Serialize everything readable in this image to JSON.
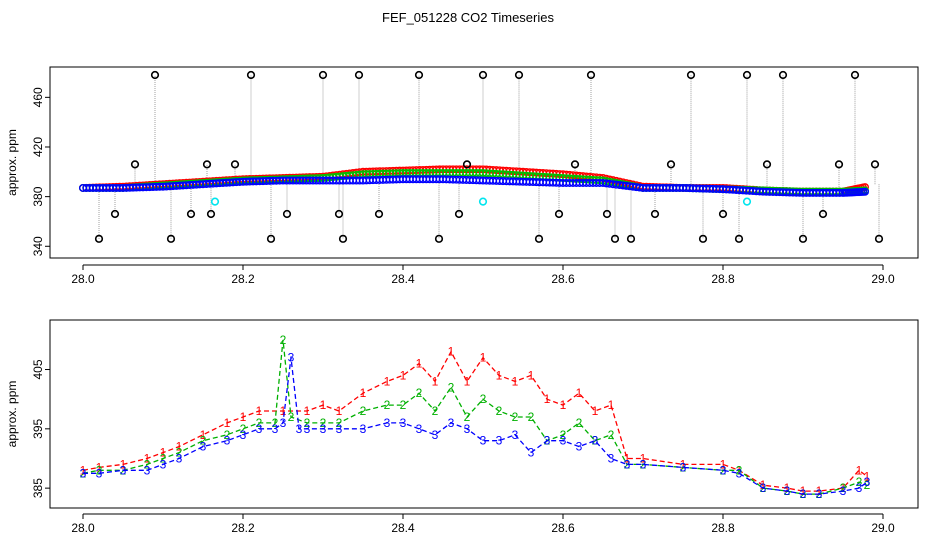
{
  "title": "FEF_051228  CO2 Timeseries",
  "chart_data": [
    {
      "type": "scatter",
      "ylabel": "approx. ppm",
      "xlim": [
        28.0,
        29.0
      ],
      "ylim": [
        337,
        478
      ],
      "xticks": [
        "28.0",
        "28.2",
        "28.4",
        "28.6",
        "28.8",
        "29.0"
      ],
      "yticks": [
        "340",
        "380",
        "420",
        "460"
      ],
      "colors": {
        "s1": "#ff0000",
        "s2": "#00c000",
        "s3": "#0000ff",
        "black": "#000000",
        "cyan": "#00e5ee",
        "link": "#a0a0a0"
      },
      "series": [
        {
          "color": "s1",
          "x": [
            28.0,
            28.05,
            28.1,
            28.15,
            28.2,
            28.25,
            28.3,
            28.35,
            28.4,
            28.45,
            28.5,
            28.55,
            28.6,
            28.65,
            28.7,
            28.75,
            28.8,
            28.85,
            28.9,
            28.95,
            28.98
          ],
          "y": [
            387,
            388,
            390,
            392,
            394,
            395,
            396,
            400,
            401,
            402,
            402,
            400,
            398,
            395,
            388,
            387,
            387,
            385,
            384,
            384,
            388
          ]
        },
        {
          "color": "s2",
          "x": [
            28.0,
            28.05,
            28.1,
            28.15,
            28.2,
            28.25,
            28.3,
            28.35,
            28.4,
            28.45,
            28.5,
            28.55,
            28.6,
            28.65,
            28.7,
            28.75,
            28.8,
            28.85,
            28.9,
            28.95,
            28.98
          ],
          "y": [
            387,
            387,
            389,
            391,
            393,
            394,
            395,
            398,
            399,
            399,
            399,
            397,
            395,
            393,
            387,
            387,
            386,
            385,
            384,
            384,
            385
          ]
        },
        {
          "color": "s3",
          "x": [
            28.0,
            28.05,
            28.1,
            28.15,
            28.2,
            28.25,
            28.3,
            28.35,
            28.4,
            28.45,
            28.5,
            28.55,
            28.6,
            28.65,
            28.7,
            28.75,
            28.8,
            28.85,
            28.9,
            28.95,
            28.98
          ],
          "y": [
            387,
            387,
            388,
            390,
            392,
            393,
            393,
            393,
            394,
            394,
            393,
            392,
            391,
            391,
            387,
            387,
            386,
            384,
            383,
            383,
            384
          ]
        },
        {
          "color": "black",
          "x": [
            28.02,
            28.04,
            28.065,
            28.09,
            28.11,
            28.135,
            28.155,
            28.16,
            28.19,
            28.21,
            28.235,
            28.255,
            28.3,
            28.32,
            28.325,
            28.345,
            28.37,
            28.42,
            28.445,
            28.47,
            28.48,
            28.5,
            28.545,
            28.57,
            28.595,
            28.615,
            28.635,
            28.655,
            28.665,
            28.685,
            28.715,
            28.735,
            28.76,
            28.775,
            28.8,
            28.82,
            28.83,
            28.855,
            28.875,
            28.9,
            28.925,
            28.945,
            28.965,
            28.99,
            28.995
          ],
          "y": [
            346,
            366,
            406,
            478,
            346,
            366,
            406,
            366,
            406,
            478,
            346,
            366,
            478,
            366,
            346,
            478,
            366,
            478,
            346,
            366,
            406,
            478,
            478,
            346,
            366,
            406,
            478,
            366,
            346,
            346,
            366,
            406,
            478,
            346,
            366,
            346,
            478,
            406,
            478,
            346,
            366,
            406,
            478,
            406,
            346
          ]
        },
        {
          "color": "cyan",
          "x": [
            28.165,
            28.5,
            28.83
          ],
          "y": [
            376,
            376,
            376
          ]
        }
      ]
    },
    {
      "type": "line",
      "ylabel": "approx. ppm",
      "xlim": [
        28.0,
        29.0
      ],
      "ylim": [
        383,
        412
      ],
      "xticks": [
        "28.0",
        "28.2",
        "28.4",
        "28.6",
        "28.8",
        "29.0"
      ],
      "yticks": [
        "385",
        "395",
        "405"
      ],
      "series": [
        {
          "name": "1",
          "color": "#ff0000",
          "x": [
            28.0,
            28.02,
            28.05,
            28.08,
            28.1,
            28.12,
            28.15,
            28.18,
            28.2,
            28.22,
            28.25,
            28.28,
            28.3,
            28.32,
            28.35,
            28.38,
            28.4,
            28.42,
            28.44,
            28.46,
            28.48,
            28.5,
            28.52,
            28.54,
            28.56,
            28.58,
            28.6,
            28.62,
            28.64,
            28.66,
            28.68,
            28.7,
            28.75,
            28.8,
            28.82,
            28.85,
            28.88,
            28.9,
            28.92,
            28.95,
            28.97,
            28.98
          ],
          "y": [
            388,
            388.5,
            389,
            390,
            391,
            392,
            394,
            396,
            397,
            398,
            398,
            398,
            399,
            398,
            401,
            403,
            404,
            406,
            403,
            408,
            403,
            407,
            404,
            403,
            404,
            400,
            399,
            401,
            398,
            399,
            390,
            390,
            389,
            389,
            388,
            385.5,
            385,
            384.5,
            384.5,
            385,
            388,
            387
          ]
        },
        {
          "name": "2",
          "color": "#00b000",
          "x": [
            28.0,
            28.02,
            28.05,
            28.08,
            28.1,
            28.12,
            28.15,
            28.18,
            28.2,
            28.22,
            28.24,
            28.25,
            28.26,
            28.28,
            28.3,
            28.32,
            28.35,
            28.38,
            28.4,
            28.42,
            28.44,
            28.46,
            28.48,
            28.5,
            28.52,
            28.54,
            28.56,
            28.58,
            28.6,
            28.62,
            28.64,
            28.66,
            28.68,
            28.7,
            28.75,
            28.8,
            28.82,
            28.85,
            28.88,
            28.9,
            28.92,
            28.95,
            28.97,
            28.98
          ],
          "y": [
            387.5,
            388,
            388,
            389,
            390,
            391,
            393,
            394,
            395,
            396,
            396,
            410,
            397,
            396,
            396,
            396,
            398,
            399,
            399,
            401,
            398,
            402,
            397,
            400,
            398,
            397,
            397,
            393,
            394,
            396,
            393,
            394,
            389,
            389,
            388.5,
            388,
            388,
            385,
            384.5,
            384,
            384,
            385,
            386,
            385.5
          ]
        },
        {
          "name": "3",
          "color": "#0000ff",
          "x": [
            28.0,
            28.02,
            28.05,
            28.08,
            28.1,
            28.12,
            28.15,
            28.18,
            28.2,
            28.22,
            28.24,
            28.25,
            28.26,
            28.27,
            28.28,
            28.3,
            28.32,
            28.35,
            28.38,
            28.4,
            28.42,
            28.44,
            28.46,
            28.48,
            28.5,
            28.52,
            28.54,
            28.56,
            28.58,
            28.6,
            28.62,
            28.64,
            28.66,
            28.68,
            28.7,
            28.75,
            28.8,
            28.82,
            28.85,
            28.88,
            28.9,
            28.92,
            28.95,
            28.97,
            28.98
          ],
          "y": [
            387.5,
            387.5,
            388,
            388,
            389,
            390,
            392,
            393,
            394,
            395,
            395,
            396,
            407,
            395,
            395,
            395,
            395,
            395,
            396,
            396,
            395,
            394,
            396,
            395,
            393,
            393,
            394,
            391,
            393,
            393,
            392,
            393,
            390,
            389,
            389,
            388.5,
            388,
            387.5,
            385,
            384.5,
            384,
            384,
            384.5,
            385,
            386
          ]
        }
      ]
    }
  ]
}
